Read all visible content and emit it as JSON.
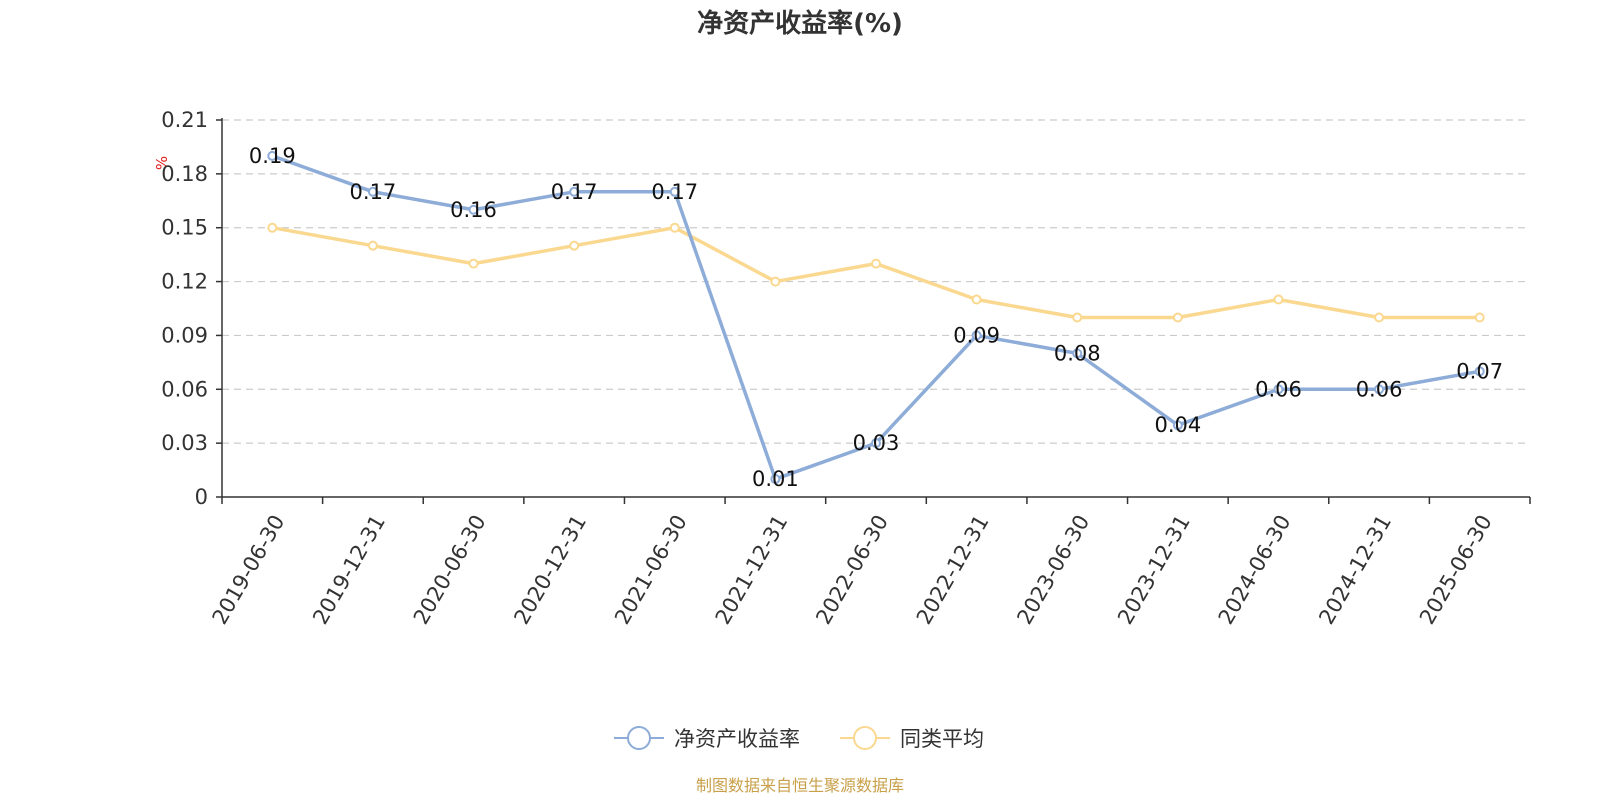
{
  "chart_data": {
    "type": "line",
    "title": "净资产收益率(%)",
    "y_unit": "%",
    "categories": [
      "2019-06-30",
      "2019-12-31",
      "2020-06-30",
      "2020-12-31",
      "2021-06-30",
      "2021-12-31",
      "2022-06-30",
      "2022-12-31",
      "2023-06-30",
      "2023-12-31",
      "2024-06-30",
      "2024-12-31",
      "2025-06-30"
    ],
    "ylim": [
      0,
      0.21
    ],
    "yticks": [
      "0",
      "0.03",
      "0.06",
      "0.09",
      "0.12",
      "0.15",
      "0.18",
      "0.21"
    ],
    "grid": "dashed horizontal",
    "legend_position": "bottom-center",
    "series": [
      {
        "name": "净资产收益率",
        "color": "#8eacd8",
        "show_labels": true,
        "values": [
          0.19,
          0.17,
          0.16,
          0.17,
          0.17,
          0.01,
          0.03,
          0.09,
          0.08,
          0.04,
          0.06,
          0.06,
          0.07
        ]
      },
      {
        "name": "同类平均",
        "color": "#fad88f",
        "show_labels": false,
        "values": [
          0.15,
          0.14,
          0.13,
          0.14,
          0.15,
          0.12,
          0.13,
          0.11,
          0.1,
          0.1,
          0.11,
          0.1,
          0.1
        ]
      }
    ],
    "source": "制图数据来自恒生聚源数据库"
  }
}
